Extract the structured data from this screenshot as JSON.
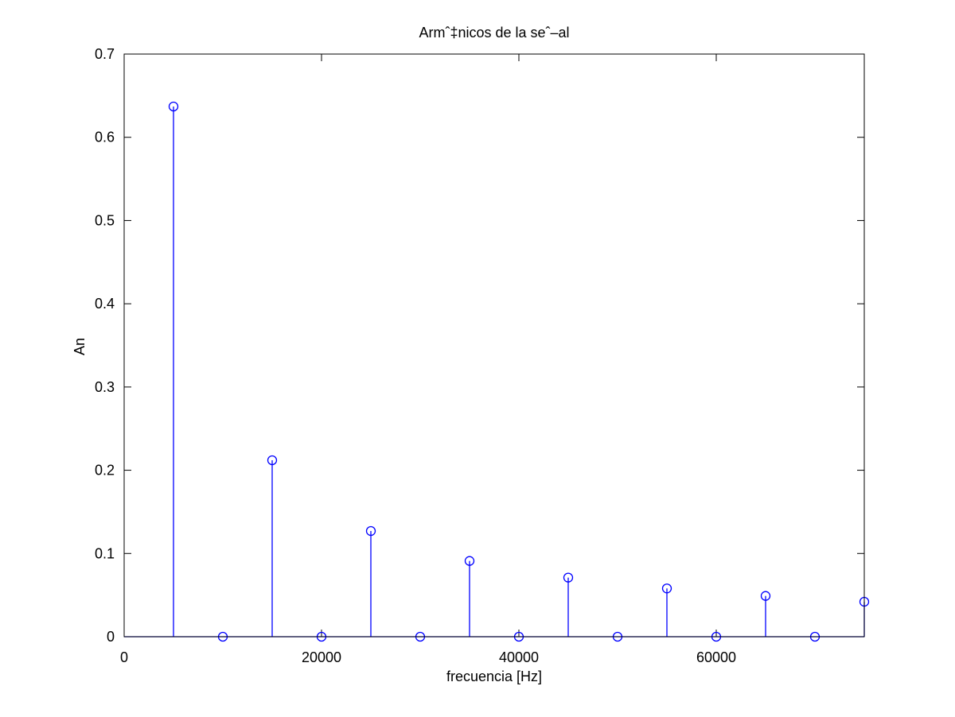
{
  "chart_data": {
    "type": "stem",
    "title": "Armˆ‡nicos de la seˆ–al",
    "xlabel": "frecuencia [Hz]",
    "ylabel": "An",
    "xlim": [
      0,
      75000
    ],
    "ylim": [
      0,
      0.7
    ],
    "x_ticks": [
      0,
      20000,
      40000,
      60000
    ],
    "x_tick_labels": [
      "0",
      "20000",
      "40000",
      "60000"
    ],
    "y_ticks": [
      0,
      0.1,
      0.2,
      0.3,
      0.4,
      0.5,
      0.6,
      0.7
    ],
    "y_tick_labels": [
      "0",
      "0.1",
      "0.2",
      "0.3",
      "0.4",
      "0.5",
      "0.6",
      "0.7"
    ],
    "grid": false,
    "series": [
      {
        "color": "#0000ff",
        "marker": "circle",
        "x": [
          5000,
          10000,
          15000,
          20000,
          25000,
          30000,
          35000,
          40000,
          45000,
          50000,
          55000,
          60000,
          65000,
          70000,
          75000
        ],
        "y": [
          0.637,
          0,
          0.212,
          0,
          0.127,
          0,
          0.091,
          0,
          0.071,
          0,
          0.058,
          0,
          0.049,
          0,
          0.042
        ]
      }
    ]
  }
}
